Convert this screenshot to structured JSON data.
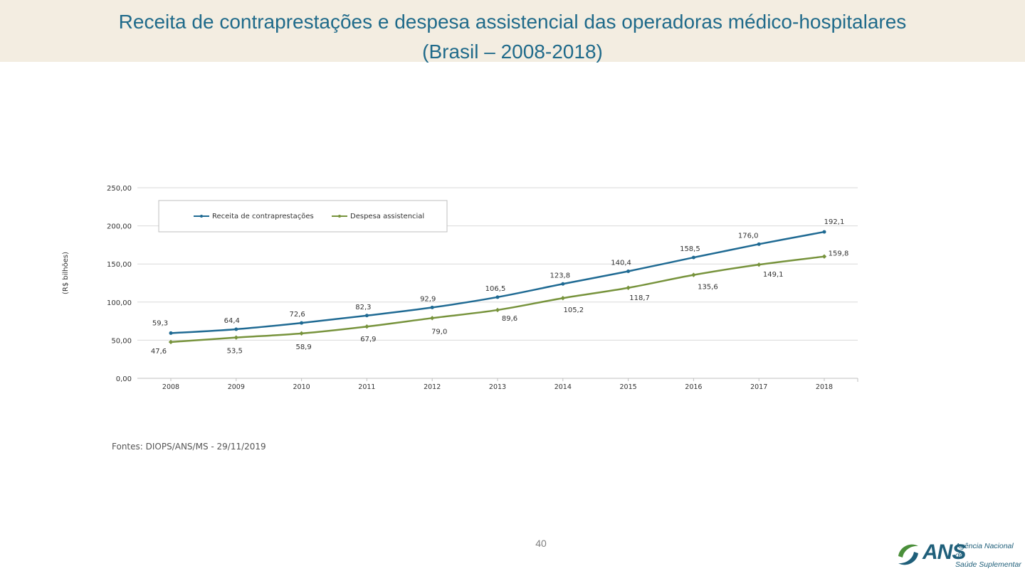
{
  "slide": {
    "title_line1": "Receita de contraprestações e despesa assistencial das operadoras médico-hospitalares",
    "title_line2": "(Brasil – 2008-2018)",
    "source": "Fontes: DIOPS/ANS/MS - 29/11/2019",
    "page_number": "40"
  },
  "logo": {
    "name": "ANS",
    "line1": "Agência Nacional de",
    "line2": "Saúde Suplementar"
  },
  "colors": {
    "title": "#1f6a8a",
    "receita": "#1f6a93",
    "despesa": "#77933c",
    "title_band": "#f3ede1"
  },
  "chart_data": {
    "type": "line",
    "title": "",
    "xlabel": "",
    "ylabel": "(R$ bilhões)",
    "categories": [
      "2008",
      "2009",
      "2010",
      "2011",
      "2012",
      "2013",
      "2014",
      "2015",
      "2016",
      "2017",
      "2018"
    ],
    "y_ticks": [
      "0,00",
      "50,00",
      "100,00",
      "150,00",
      "200,00",
      "250,00"
    ],
    "ylim": [
      0,
      250
    ],
    "grid": true,
    "legend_position": "top-left",
    "series": [
      {
        "name": "Receita de contraprestações",
        "values": [
          59.3,
          64.4,
          72.6,
          82.3,
          92.9,
          106.5,
          123.8,
          140.4,
          158.5,
          176.0,
          192.1
        ],
        "labels": [
          "59,3",
          "64,4",
          "72,6",
          "82,3",
          "92,9",
          "106,5",
          "123,8",
          "140,4",
          "158,5",
          "176,0",
          "192,1"
        ]
      },
      {
        "name": "Despesa assistencial",
        "values": [
          47.6,
          53.5,
          58.9,
          67.9,
          79.0,
          89.6,
          105.2,
          118.7,
          135.6,
          149.1,
          159.8
        ],
        "labels": [
          "47,6",
          "53,5",
          "58,9",
          "67,9",
          "79,0",
          "89,6",
          "105,2",
          "118,7",
          "135,6",
          "149,1",
          "159,8"
        ]
      }
    ]
  }
}
